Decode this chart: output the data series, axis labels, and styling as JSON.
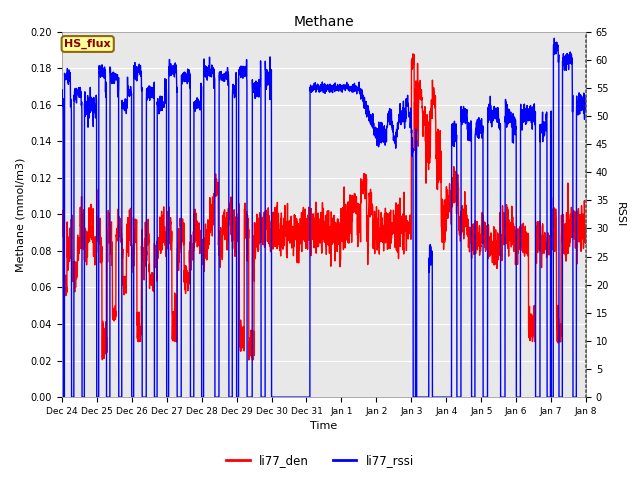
{
  "title": "Methane",
  "xlabel": "Time",
  "ylabel_left": "Methane (mmol/m3)",
  "ylabel_right": "RSSI",
  "ylim_left": [
    0.0,
    0.2
  ],
  "ylim_right": [
    0,
    65
  ],
  "yticks_left": [
    0.0,
    0.02,
    0.04,
    0.06,
    0.08,
    0.1,
    0.12,
    0.14,
    0.16,
    0.18,
    0.2
  ],
  "yticks_right": [
    0,
    5,
    10,
    15,
    20,
    25,
    30,
    35,
    40,
    45,
    50,
    55,
    60,
    65
  ],
  "xtick_labels": [
    "Dec 24",
    "Dec 25",
    "Dec 26",
    "Dec 27",
    "Dec 28",
    "Dec 29",
    "Dec 30",
    "Dec 31",
    "Jan 1",
    "Jan 2",
    "Jan 3",
    "Jan 4",
    "Jan 5",
    "Jan 6",
    "Jan 7",
    "Jan 8"
  ],
  "legend_label_red": "li77_den",
  "legend_label_blue": "li77_rssi",
  "annotation_text": "HS_flux",
  "annotation_color": "#8B0000",
  "annotation_bg": "#FFFF99",
  "annotation_border": "#8B6914",
  "red_color": "#FF0000",
  "blue_color": "#0000FF",
  "fig_bg": "#FFFFFF",
  "plot_bg": "#E8E8E8",
  "grid_color": "#FFFFFF",
  "line_width": 1.0,
  "title_fontsize": 10,
  "axis_fontsize": 8,
  "tick_fontsize": 7
}
